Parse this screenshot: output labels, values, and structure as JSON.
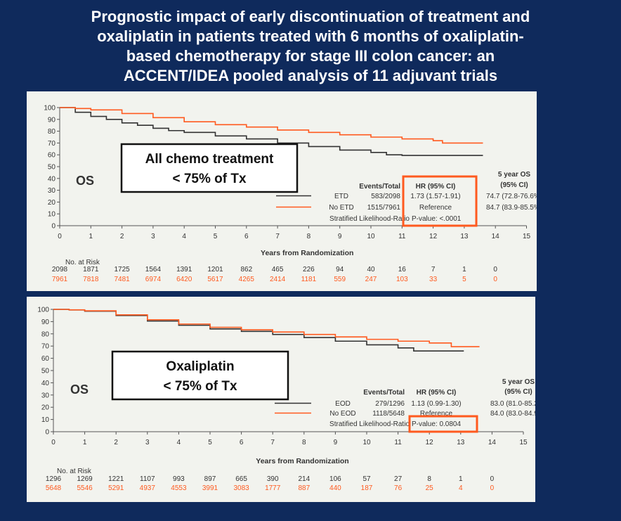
{
  "slide_title_lines": [
    "Prognostic impact of early discontinuation of treatment and",
    "oxaliplatin in patients treated with 6 months of oxaliplatin-",
    "based chemotherapy for stage III colon cancer: an",
    "ACCENT/IDEA pooled analysis of 11 adjuvant trials"
  ],
  "colors": {
    "background": "#0f2a5c",
    "panel": "#f2f3ee",
    "series_black": "#333333",
    "series_orange": "#ff5a1f",
    "highlight_box": "#ff5a1f"
  },
  "chart_data": [
    {
      "type": "line",
      "callout_lines": [
        "All chemo treatment",
        "< 75% of Tx"
      ],
      "os_label": "OS",
      "xlabel": "Years from Randomization",
      "xlim": [
        0,
        15
      ],
      "ylim": [
        0,
        100
      ],
      "x_ticks": [
        "0",
        "1",
        "2",
        "3",
        "4",
        "5",
        "6",
        "7",
        "8",
        "9",
        "10",
        "11",
        "12",
        "13",
        "14",
        "15"
      ],
      "y_ticks": [
        "0",
        "10",
        "20",
        "30",
        "40",
        "50",
        "60",
        "70",
        "80",
        "90",
        "100"
      ],
      "grid": false,
      "legend": {
        "col_events": "Events/Total",
        "col_hr": "HR (95% CI)",
        "col_os_line1": "5 year OS",
        "col_os_line2": "(95% CI)",
        "rows": [
          {
            "name": "ETD",
            "events": "583/2098",
            "hr": "1.73 (1.57-1.91)",
            "os5": "74.7 (72.8-76.6%)",
            "color": "#333333"
          },
          {
            "name": "No ETD",
            "events": "1515/7961",
            "hr": "Reference",
            "os5": "84.7 (83.9-85.5%)",
            "color": "#ff5a1f"
          }
        ],
        "footer_left": "Stratified Likelihood-Ratio",
        "footer_p": "P-value: <.0001"
      },
      "series": [
        {
          "name": "ETD",
          "color": "#333333",
          "x": [
            0,
            0.5,
            1,
            1.5,
            2,
            2.5,
            3,
            3.5,
            4,
            5,
            6,
            7,
            8,
            9,
            10,
            10.5,
            11,
            12,
            13,
            13.6
          ],
          "y": [
            100,
            96,
            92.5,
            90,
            87,
            85,
            82.5,
            80.5,
            79,
            76,
            73.5,
            70,
            67,
            64,
            62,
            60,
            59.5,
            59.5,
            59.5,
            59.5
          ]
        },
        {
          "name": "No ETD",
          "color": "#ff5a1f",
          "x": [
            0,
            0.5,
            1,
            2,
            3,
            4,
            5,
            6,
            7,
            8,
            9,
            10,
            11,
            12,
            12.3,
            13,
            13.6
          ],
          "y": [
            100,
            99.2,
            98,
            95,
            91.5,
            88,
            85.5,
            83.5,
            81,
            79,
            77,
            75,
            73.5,
            72,
            70,
            70,
            70
          ]
        }
      ],
      "at_risk": {
        "label": "No. at Risk",
        "rows": [
          {
            "color": "#333333",
            "values": [
              "2098",
              "1871",
              "1725",
              "1564",
              "1391",
              "1201",
              "862",
              "465",
              "226",
              "94",
              "40",
              "16",
              "7",
              "1",
              "0"
            ]
          },
          {
            "color": "#ff5a1f",
            "values": [
              "7961",
              "7818",
              "7481",
              "6974",
              "6420",
              "5617",
              "4265",
              "2414",
              "1181",
              "559",
              "247",
              "103",
              "33",
              "5",
              "0"
            ]
          }
        ]
      }
    },
    {
      "type": "line",
      "callout_lines": [
        "Oxaliplatin",
        "< 75% of Tx"
      ],
      "os_label": "OS",
      "xlabel": "Years from Randomization",
      "xlim": [
        0,
        15
      ],
      "ylim": [
        0,
        100
      ],
      "x_ticks": [
        "0",
        "1",
        "2",
        "3",
        "4",
        "5",
        "6",
        "7",
        "8",
        "9",
        "10",
        "11",
        "12",
        "13",
        "14",
        "15"
      ],
      "y_ticks": [
        "0",
        "10",
        "20",
        "30",
        "40",
        "50",
        "60",
        "70",
        "80",
        "90",
        "100"
      ],
      "grid": false,
      "legend": {
        "col_events": "Events/Total",
        "col_hr": "HR (95% CI)",
        "col_os_line1": "5 year OS",
        "col_os_line2": "(95% CI)",
        "rows": [
          {
            "name": "EOD",
            "events": "279/1296",
            "hr": "1.13 (0.99-1.30)",
            "os5": "83.0 (81.0-85.2%)",
            "color": "#333333"
          },
          {
            "name": "No EOD",
            "events": "1118/5648",
            "hr": "Reference",
            "os5": "84.0 (83.0-84.9%)",
            "color": "#ff5a1f"
          }
        ],
        "footer_left": "Stratified Likelihood-Ratio",
        "footer_p": "P-value: 0.0804"
      },
      "series": [
        {
          "name": "EOD",
          "color": "#333333",
          "x": [
            0,
            0.5,
            1,
            2,
            3,
            4,
            5,
            6,
            7,
            8,
            9,
            10,
            11,
            11.5,
            12,
            13,
            13.1
          ],
          "y": [
            100,
            99.5,
            98.5,
            95,
            90.5,
            87,
            84,
            82,
            79.5,
            77,
            74,
            71,
            68.5,
            66,
            66,
            66,
            66
          ]
        },
        {
          "name": "No EOD",
          "color": "#ff5a1f",
          "x": [
            0,
            0.5,
            1,
            2,
            3,
            4,
            5,
            6,
            7,
            8,
            9,
            10,
            11,
            12,
            12.7,
            13,
            13.6
          ],
          "y": [
            100,
            99.6,
            98.8,
            95.5,
            91.5,
            88,
            85.3,
            83.3,
            81.5,
            79.5,
            77.5,
            75.5,
            74,
            72.5,
            69.5,
            69.5,
            69.5
          ]
        }
      ],
      "at_risk": {
        "label": "No. at Risk",
        "rows": [
          {
            "color": "#333333",
            "values": [
              "1296",
              "1269",
              "1221",
              "1107",
              "993",
              "897",
              "665",
              "390",
              "214",
              "106",
              "57",
              "27",
              "8",
              "1",
              "0"
            ]
          },
          {
            "color": "#ff5a1f",
            "values": [
              "5648",
              "5546",
              "5291",
              "4937",
              "4553",
              "3991",
              "3083",
              "1777",
              "887",
              "440",
              "187",
              "76",
              "25",
              "4",
              "0"
            ]
          }
        ]
      }
    }
  ]
}
